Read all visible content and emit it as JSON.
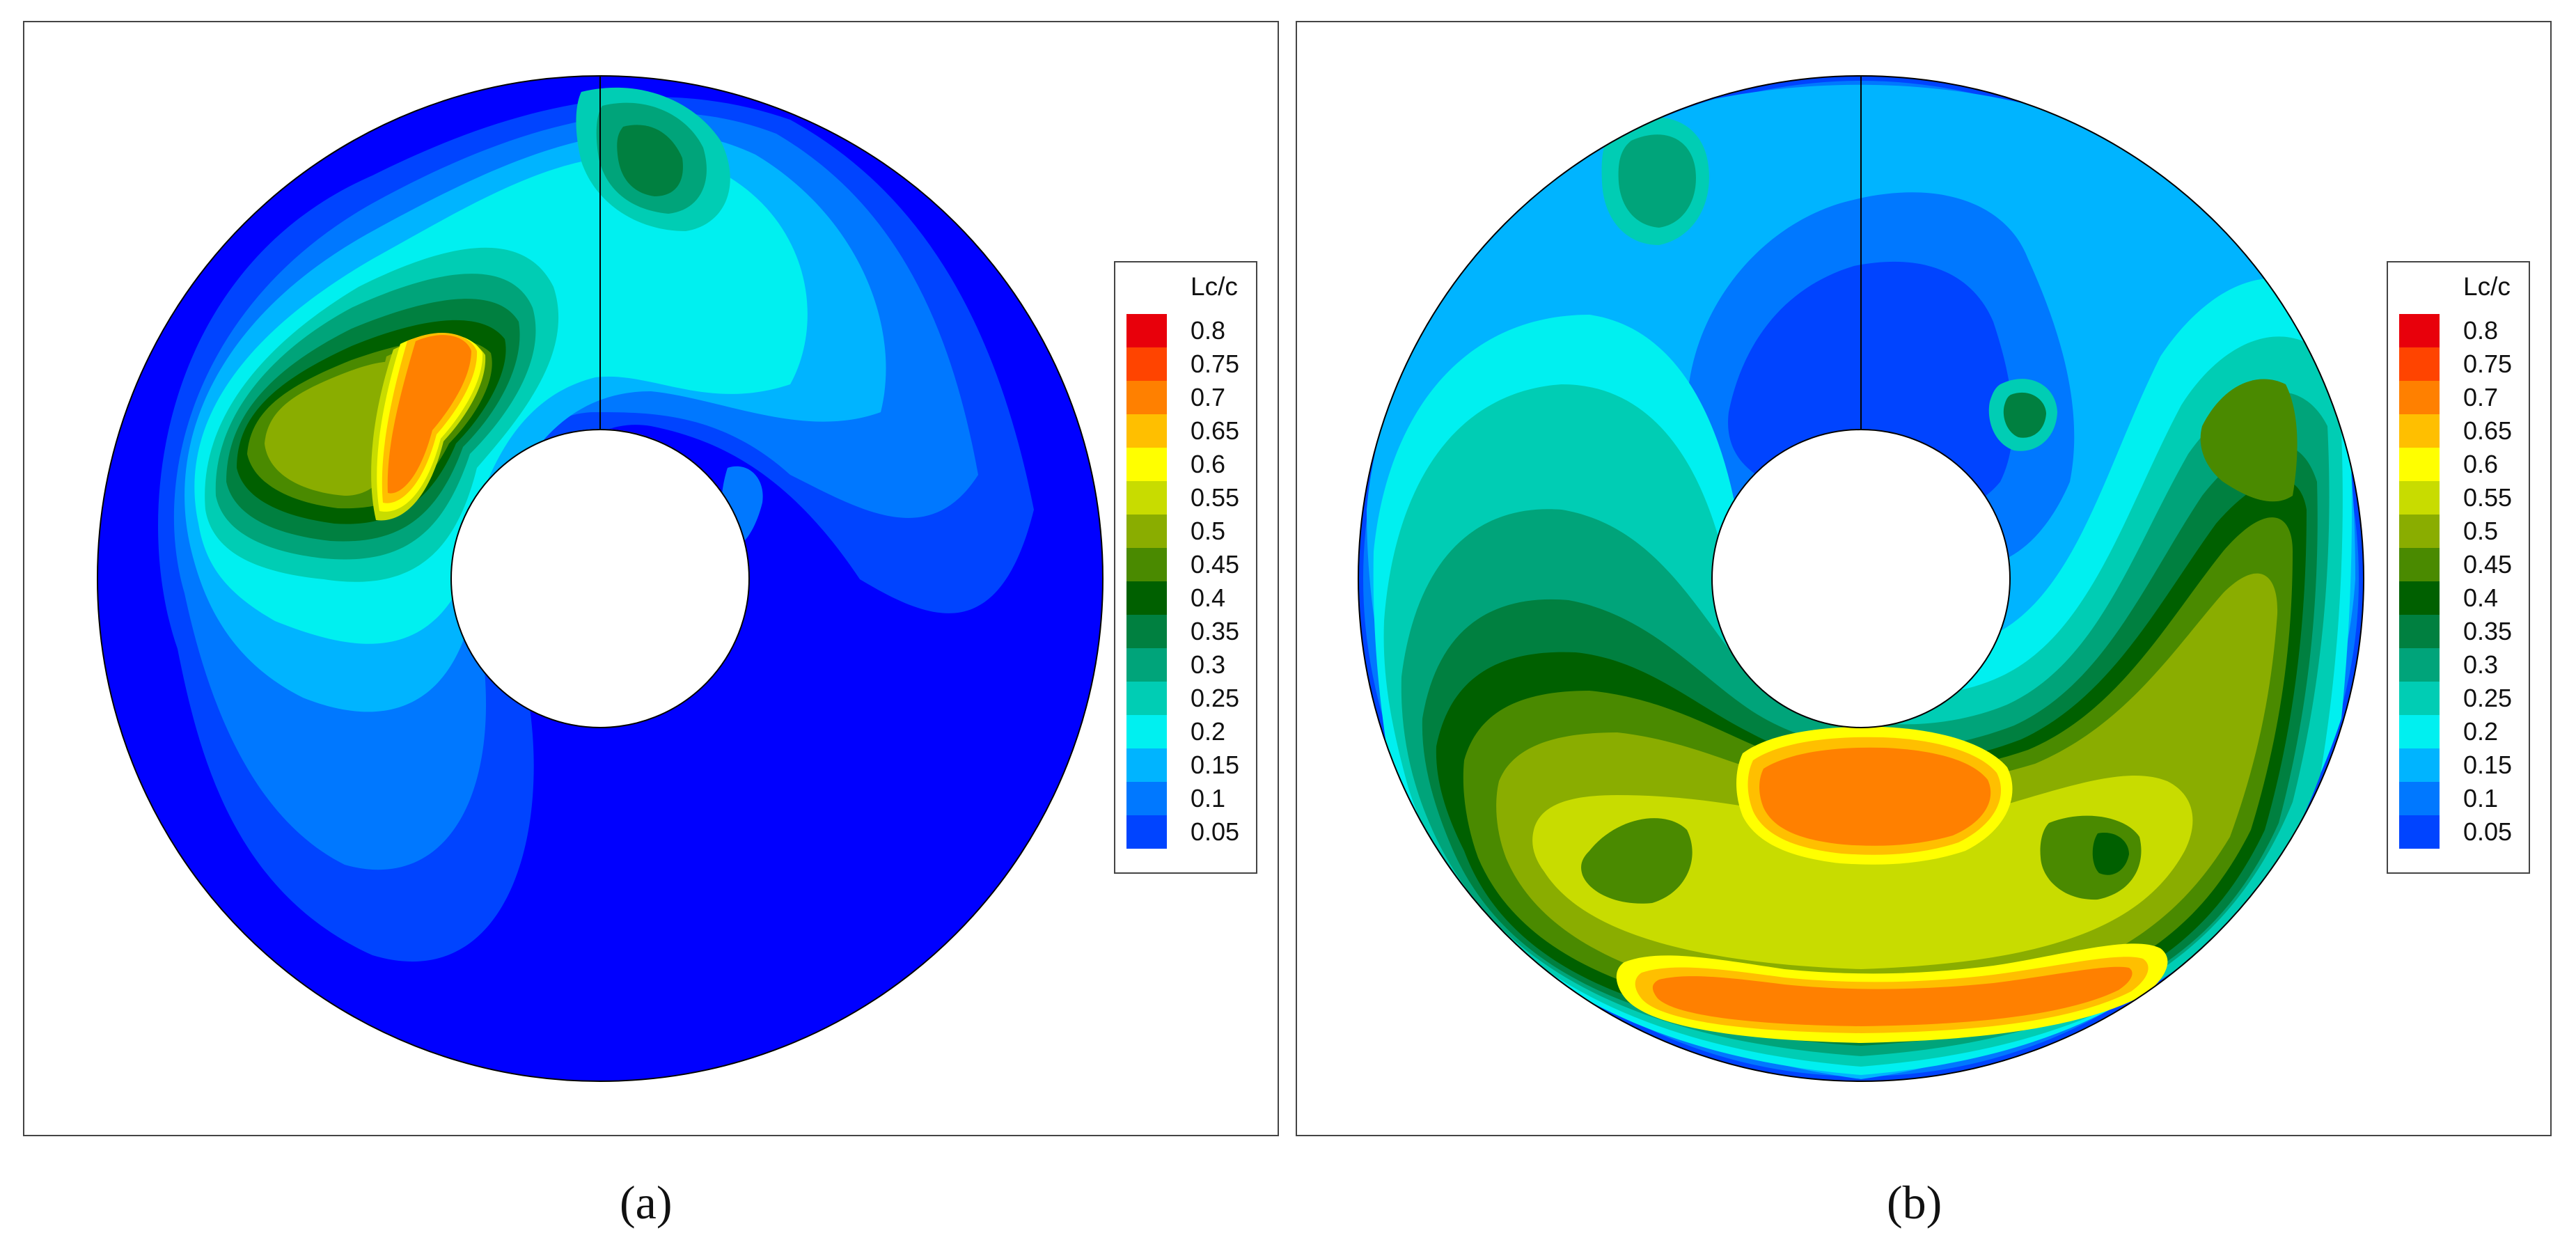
{
  "chart_data": [
    {
      "type": "contour",
      "panel": "a",
      "legend_title": "Lc/c",
      "levels": [
        0.8,
        0.75,
        0.7,
        0.65,
        0.6,
        0.55,
        0.5,
        0.45,
        0.4,
        0.35,
        0.3,
        0.25,
        0.2,
        0.15,
        0.1,
        0.05
      ],
      "level_colors": [
        "#e8000b",
        "#ff4400",
        "#ff8000",
        "#ffbf00",
        "#ffff00",
        "#c8dc00",
        "#8aad00",
        "#4a8a00",
        "#006000",
        "#008040",
        "#00a47a",
        "#00cdb4",
        "#00f0f0",
        "#00b4ff",
        "#0078ff",
        "#0044ff"
      ],
      "background_color": "#0000ff",
      "caption": "(a)"
    },
    {
      "type": "contour",
      "panel": "b",
      "legend_title": "Lc/c",
      "levels": [
        0.8,
        0.75,
        0.7,
        0.65,
        0.6,
        0.55,
        0.5,
        0.45,
        0.4,
        0.35,
        0.3,
        0.25,
        0.2,
        0.15,
        0.1,
        0.05
      ],
      "level_colors": [
        "#e8000b",
        "#ff4400",
        "#ff8000",
        "#ffbf00",
        "#ffff00",
        "#c8dc00",
        "#8aad00",
        "#4a8a00",
        "#006000",
        "#008040",
        "#00a47a",
        "#00cdb4",
        "#00f0f0",
        "#00b4ff",
        "#0078ff",
        "#0044ff"
      ],
      "background_color": "#0000ff",
      "caption": "(b)"
    }
  ]
}
